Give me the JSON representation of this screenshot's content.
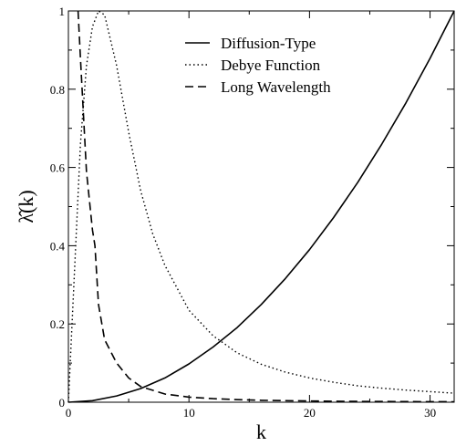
{
  "chart_data": {
    "type": "line",
    "title": "",
    "xlabel": "k",
    "ylabel": "λ̂(k)",
    "xlim": [
      0,
      32
    ],
    "ylim": [
      0,
      1
    ],
    "xticks": [
      0,
      10,
      20,
      30
    ],
    "xtick_labels": [
      "0",
      "10",
      "20",
      "30"
    ],
    "yticks": [
      0,
      0.2,
      0.4,
      0.6,
      0.8,
      1
    ],
    "ytick_labels": [
      "0",
      "0.2",
      "0.4",
      "0.6",
      "0.8",
      "1"
    ],
    "grid": false,
    "legend": "top-center",
    "series": [
      {
        "name": "Diffusion-Type",
        "style": "solid",
        "x": [
          0,
          2,
          4,
          6,
          8,
          10,
          12,
          14,
          16,
          18,
          20,
          22,
          24,
          26,
          28,
          30,
          32
        ],
        "y": [
          0,
          0.004,
          0.016,
          0.035,
          0.062,
          0.098,
          0.141,
          0.191,
          0.25,
          0.316,
          0.39,
          0.472,
          0.562,
          0.66,
          0.765,
          0.879,
          1.0
        ]
      },
      {
        "name": "Debye Function",
        "style": "dotted",
        "x": [
          0,
          0.5,
          1,
          1.5,
          2,
          2.5,
          3,
          4,
          5,
          6,
          7,
          8,
          10,
          12,
          14,
          16,
          18,
          20,
          22,
          24,
          26,
          28,
          30,
          32
        ],
        "y": [
          0,
          0.33,
          0.66,
          0.86,
          0.96,
          1.0,
          0.99,
          0.86,
          0.69,
          0.54,
          0.43,
          0.35,
          0.235,
          0.17,
          0.126,
          0.097,
          0.077,
          0.062,
          0.051,
          0.042,
          0.036,
          0.031,
          0.027,
          0.023
        ]
      },
      {
        "name": "Long Wavelength",
        "style": "dashed",
        "x": [
          0.8,
          1,
          1.5,
          2,
          2.2,
          2.5,
          3,
          4,
          5,
          6,
          8,
          10,
          12,
          14,
          16,
          18,
          20,
          22,
          24,
          26,
          28,
          30,
          32
        ],
        "y": [
          1.0,
          0.88,
          0.59,
          0.44,
          0.4,
          0.25,
          0.16,
          0.1,
          0.062,
          0.04,
          0.021,
          0.013,
          0.009,
          0.0065,
          0.005,
          0.004,
          0.0032,
          0.0026,
          0.0022,
          0.0018,
          0.0016,
          0.0014,
          0.0012
        ]
      }
    ]
  }
}
